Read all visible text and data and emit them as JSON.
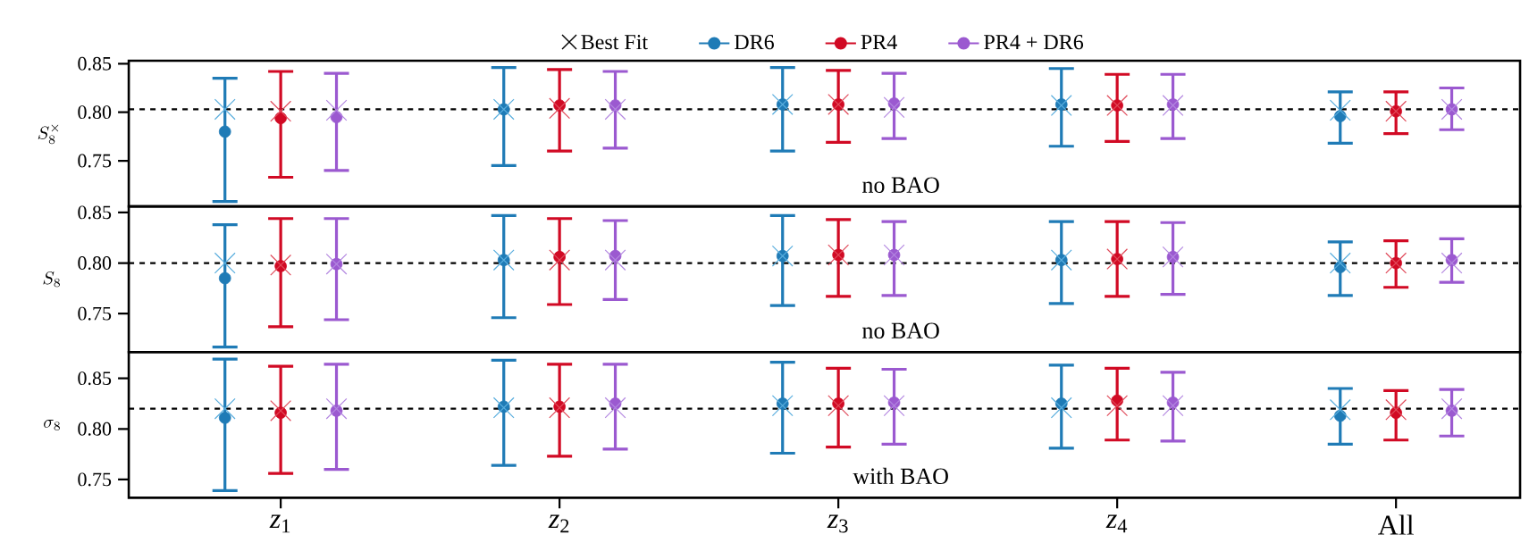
{
  "chart_data": [
    {
      "type": "scatter",
      "categories": [
        "*z*$_{1}$",
        "*z*$_{2}$",
        "*z*$_{3}$",
        "*z*$_{4}$",
        "All"
      ],
      "ylabel": "S_8^{\\times}",
      "ylim": [
        0.703,
        0.853
      ],
      "yticks": [
        {
          "value": 0.75,
          "label": "0.75"
        },
        {
          "value": 0.8,
          "label": "0.80"
        },
        {
          "value": 0.85,
          "label": "0.85"
        }
      ],
      "tick_labels": "y",
      "legend": "top",
      "marker": "circle",
      "annotations": [
        "no BAO"
      ],
      "ref_lines": [
        {
          "axis": "y",
          "value": 0.803,
          "color": "#000000",
          "line_style": "dashed"
        }
      ],
      "series": [
        {
          "name": "Best Fit",
          "type": "scatter",
          "marker": "cross",
          "color": "#000000",
          "x": [
            "*z*$_{1}$",
            "*z*$_{2}$",
            "*z*$_{3}$",
            "*z*$_{4}$",
            "All",
            "*z*$_{1}$",
            "*z*$_{2}$",
            "*z*$_{3}$",
            "*z*$_{4}$",
            "All",
            "*z*$_{1}$",
            "*z*$_{2}$",
            "*z*$_{3}$",
            "*z*$_{4}$",
            "All"
          ],
          "values": [
            0.803,
            0.803,
            0.808,
            0.807,
            0.802,
            0.801,
            0.804,
            0.808,
            0.807,
            0.801,
            0.802,
            0.803,
            0.805,
            0.807,
            0.803
          ],
          "colors": [
            "#5aaede",
            "#5aaede",
            "#5aaede",
            "#5aaede",
            "#5aaede",
            "#e04a5a",
            "#e04a5a",
            "#e04a5a",
            "#e04a5a",
            "#e04a5a",
            "#b387e0",
            "#b387e0",
            "#b387e0",
            "#b387e0",
            "#b387e0"
          ]
        },
        {
          "name": "DR6",
          "color": "#1f7bb6",
          "values": [
            0.78,
            0.803,
            0.808,
            0.808,
            0.796
          ],
          "errors": [
            [
              0.708,
              0.835
            ],
            [
              0.745,
              0.846
            ],
            [
              0.76,
              0.846
            ],
            [
              0.765,
              0.845
            ],
            [
              0.768,
              0.821
            ]
          ]
        },
        {
          "name": "PR4",
          "color": "#d10a24",
          "values": [
            0.794,
            0.807,
            0.808,
            0.807,
            0.801
          ],
          "errors": [
            [
              0.733,
              0.842
            ],
            [
              0.76,
              0.844
            ],
            [
              0.769,
              0.843
            ],
            [
              0.77,
              0.839
            ],
            [
              0.778,
              0.821
            ]
          ]
        },
        {
          "name": "PR4 + DR6",
          "color": "#9b59d0",
          "values": [
            0.795,
            0.807,
            0.809,
            0.808,
            0.803
          ],
          "errors": [
            [
              0.74,
              0.84
            ],
            [
              0.763,
              0.842
            ],
            [
              0.773,
              0.84
            ],
            [
              0.773,
              0.839
            ],
            [
              0.782,
              0.825
            ]
          ]
        }
      ]
    },
    {
      "type": "scatter",
      "categories": [
        "*z*$_{1}$",
        "*z*$_{2}$",
        "*z*$_{3}$",
        "*z*$_{4}$",
        "All"
      ],
      "ylabel": "S_8",
      "ylim": [
        0.712,
        0.856
      ],
      "yticks": [
        {
          "value": 0.75,
          "label": "0.75"
        },
        {
          "value": 0.8,
          "label": "0.80"
        },
        {
          "value": 0.85,
          "label": "0.85"
        }
      ],
      "tick_labels": "y",
      "marker": "circle",
      "annotations": [
        "no BAO"
      ],
      "ref_lines": [
        {
          "axis": "y",
          "value": 0.8,
          "color": "#000000",
          "line_style": "dashed"
        }
      ],
      "series": [
        {
          "type": "scatter",
          "marker": "cross",
          "color": "#000000",
          "x": [
            "*z*$_{1}$",
            "*z*$_{2}$",
            "*z*$_{3}$",
            "*z*$_{4}$",
            "All",
            "*z*$_{1}$",
            "*z*$_{2}$",
            "*z*$_{3}$",
            "*z*$_{4}$",
            "All",
            "*z*$_{1}$",
            "*z*$_{2}$",
            "*z*$_{3}$",
            "*z*$_{4}$",
            "All"
          ],
          "values": [
            0.8,
            0.803,
            0.807,
            0.803,
            0.8,
            0.798,
            0.803,
            0.808,
            0.804,
            0.8,
            0.799,
            0.803,
            0.808,
            0.806,
            0.8
          ],
          "colors": [
            "#5aaede",
            "#5aaede",
            "#5aaede",
            "#5aaede",
            "#5aaede",
            "#e04a5a",
            "#e04a5a",
            "#e04a5a",
            "#e04a5a",
            "#e04a5a",
            "#b387e0",
            "#b387e0",
            "#b387e0",
            "#b387e0",
            "#b387e0"
          ]
        },
        {
          "color": "#1f7bb6",
          "values": [
            0.785,
            0.803,
            0.807,
            0.803,
            0.796
          ],
          "errors": [
            [
              0.717,
              0.838
            ],
            [
              0.746,
              0.847
            ],
            [
              0.758,
              0.847
            ],
            [
              0.76,
              0.841
            ],
            [
              0.768,
              0.821
            ]
          ]
        },
        {
          "color": "#d10a24",
          "values": [
            0.797,
            0.806,
            0.808,
            0.804,
            0.8
          ],
          "errors": [
            [
              0.737,
              0.844
            ],
            [
              0.759,
              0.844
            ],
            [
              0.767,
              0.843
            ],
            [
              0.767,
              0.841
            ],
            [
              0.776,
              0.822
            ]
          ]
        },
        {
          "color": "#9b59d0",
          "values": [
            0.799,
            0.807,
            0.808,
            0.806,
            0.803
          ],
          "errors": [
            [
              0.744,
              0.844
            ],
            [
              0.764,
              0.842
            ],
            [
              0.768,
              0.841
            ],
            [
              0.769,
              0.84
            ],
            [
              0.781,
              0.824
            ]
          ]
        }
      ]
    },
    {
      "type": "scatter",
      "categories": [
        "*z*$_{1}$",
        "*z*$_{2}$",
        "*z*$_{3}$",
        "*z*$_{4}$",
        "All"
      ],
      "ylabel": "\\sigma_8",
      "ylim": [
        0.732,
        0.876
      ],
      "yticks": [
        {
          "value": 0.75,
          "label": "0.75"
        },
        {
          "value": 0.8,
          "label": "0.80"
        },
        {
          "value": 0.85,
          "label": "0.85"
        }
      ],
      "marker": "circle",
      "annotations": [
        "with BAO"
      ],
      "ref_lines": [
        {
          "axis": "y",
          "value": 0.82,
          "color": "#000000",
          "line_style": "dashed"
        }
      ],
      "series": [
        {
          "type": "scatter",
          "marker": "cross",
          "color": "#000000",
          "x": [
            "*z*$_{1}$",
            "*z*$_{2}$",
            "*z*$_{3}$",
            "*z*$_{4}$",
            "All",
            "*z*$_{1}$",
            "*z*$_{2}$",
            "*z*$_{3}$",
            "*z*$_{4}$",
            "All",
            "*z*$_{1}$",
            "*z*$_{2}$",
            "*z*$_{3}$",
            "*z*$_{4}$",
            "All"
          ],
          "values": [
            0.82,
            0.821,
            0.823,
            0.821,
            0.819,
            0.818,
            0.821,
            0.823,
            0.823,
            0.819,
            0.82,
            0.821,
            0.823,
            0.823,
            0.82
          ],
          "colors": [
            "#5aaede",
            "#5aaede",
            "#5aaede",
            "#5aaede",
            "#5aaede",
            "#e04a5a",
            "#e04a5a",
            "#e04a5a",
            "#e04a5a",
            "#e04a5a",
            "#b387e0",
            "#b387e0",
            "#b387e0",
            "#b387e0",
            "#b387e0"
          ]
        },
        {
          "color": "#1f7bb6",
          "values": [
            0.811,
            0.822,
            0.825,
            0.825,
            0.813
          ],
          "errors": [
            [
              0.739,
              0.869
            ],
            [
              0.764,
              0.868
            ],
            [
              0.776,
              0.866
            ],
            [
              0.781,
              0.863
            ],
            [
              0.785,
              0.84
            ]
          ]
        },
        {
          "color": "#d10a24",
          "values": [
            0.816,
            0.822,
            0.825,
            0.828,
            0.816
          ],
          "errors": [
            [
              0.756,
              0.862
            ],
            [
              0.773,
              0.864
            ],
            [
              0.782,
              0.86
            ],
            [
              0.789,
              0.86
            ],
            [
              0.789,
              0.838
            ]
          ]
        },
        {
          "color": "#9b59d0",
          "values": [
            0.818,
            0.825,
            0.826,
            0.826,
            0.818
          ],
          "errors": [
            [
              0.76,
              0.864
            ],
            [
              0.78,
              0.864
            ],
            [
              0.785,
              0.859
            ],
            [
              0.788,
              0.856
            ],
            [
              0.793,
              0.839
            ]
          ]
        }
      ]
    }
  ]
}
